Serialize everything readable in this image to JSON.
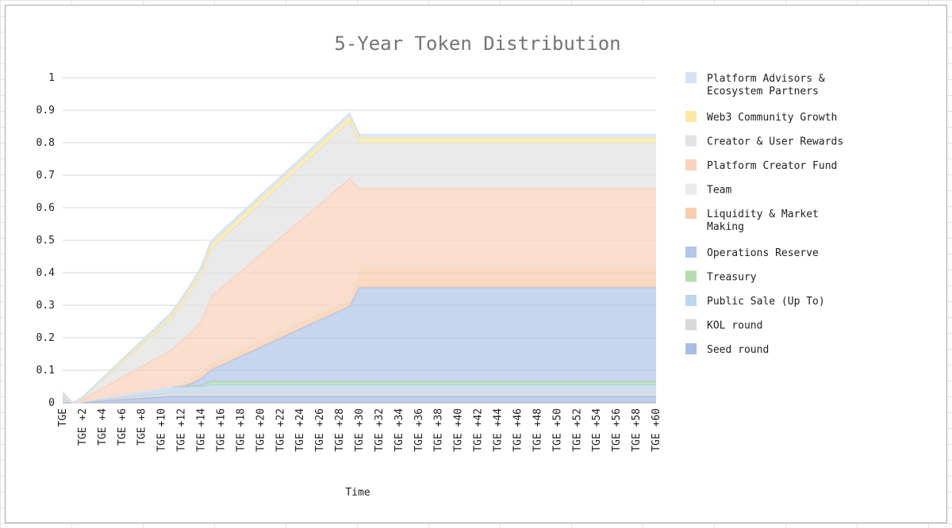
{
  "chart_data": {
    "type": "area",
    "stacked": true,
    "title": "5-Year Token Distribution",
    "xlabel": "Time",
    "ylabel": "",
    "ylim": [
      0,
      1
    ],
    "yticks": [
      "0",
      "0.1",
      "0.2",
      "0.3",
      "0.4",
      "0.5",
      "0.6",
      "0.7",
      "0.8",
      "0.9",
      "1"
    ],
    "xticks": [
      "TGE",
      "TGE +2",
      "TGE +4",
      "TGE +6",
      "TGE +8",
      "TGE +10",
      "TGE +12",
      "TGE +14",
      "TGE +16",
      "TGE +18",
      "TGE +20",
      "TGE +22",
      "TGE +24",
      "TGE +26",
      "TGE +28",
      "TGE +30",
      "TGE +32",
      "TGE +34",
      "TGE +36",
      "TGE +38",
      "TGE +40",
      "TGE +42",
      "TGE +44",
      "TGE +46",
      "TGE +48",
      "TGE +50",
      "TGE +52",
      "TGE +54",
      "TGE +56",
      "TGE +58",
      "TGE +60"
    ],
    "x": [
      0,
      1,
      2,
      3,
      4,
      5,
      6,
      7,
      8,
      9,
      10,
      11,
      12,
      13,
      14,
      15,
      16,
      17,
      18,
      19,
      20,
      21,
      22,
      23,
      24,
      25,
      26,
      27,
      28,
      29,
      30,
      31,
      32,
      33,
      34,
      35,
      36,
      37,
      38,
      39,
      40,
      41,
      42,
      43,
      44,
      45,
      46,
      47,
      48,
      49,
      50,
      51,
      52,
      53,
      54,
      55,
      56,
      57,
      58,
      59,
      60
    ],
    "grid": true,
    "legend_position": "right",
    "series": [
      {
        "name": "Seed round",
        "color": "#a9bde6",
        "values": [
          0,
          0,
          0.002,
          0.004,
          0.006,
          0.008,
          0.01,
          0.012,
          0.014,
          0.016,
          0.018,
          0.02,
          0.02,
          0.02,
          0.02,
          0.02,
          0.02,
          0.02,
          0.02,
          0.02,
          0.02,
          0.02,
          0.02,
          0.02,
          0.02,
          0.02,
          0.02,
          0.02,
          0.02,
          0.02,
          0.02,
          0.02,
          0.02,
          0.02,
          0.02,
          0.02,
          0.02,
          0.02,
          0.02,
          0.02,
          0.02,
          0.02,
          0.02,
          0.02,
          0.02,
          0.02,
          0.02,
          0.02,
          0.02,
          0.02,
          0.02,
          0.02,
          0.02,
          0.02,
          0.02,
          0.02,
          0.02,
          0.02,
          0.02,
          0.02,
          0.02
        ]
      },
      {
        "name": "KOL round",
        "color": "#d9d9d9",
        "values": [
          0.01,
          0,
          0.001,
          0.002,
          0.003,
          0.004,
          0.005,
          0.006,
          0.007,
          0.008,
          0.009,
          0.01,
          0.01,
          0.01,
          0.01,
          0.01,
          0.01,
          0.01,
          0.01,
          0.01,
          0.01,
          0.01,
          0.01,
          0.01,
          0.01,
          0.01,
          0.01,
          0.01,
          0.01,
          0.01,
          0.01,
          0.01,
          0.01,
          0.01,
          0.01,
          0.01,
          0.01,
          0.01,
          0.01,
          0.01,
          0.01,
          0.01,
          0.01,
          0.01,
          0.01,
          0.01,
          0.01,
          0.01,
          0.01,
          0.01,
          0.01,
          0.01,
          0.01,
          0.01,
          0.01,
          0.01,
          0.01,
          0.01,
          0.01,
          0.01,
          0.01
        ]
      },
      {
        "name": "Public Sale (Up To)",
        "color": "#bdd7ee",
        "values": [
          0.015,
          0,
          0.002,
          0.004,
          0.006,
          0.008,
          0.01,
          0.012,
          0.014,
          0.016,
          0.018,
          0.02,
          0.02,
          0.02,
          0.02,
          0.025,
          0.025,
          0.025,
          0.025,
          0.025,
          0.025,
          0.025,
          0.025,
          0.025,
          0.025,
          0.025,
          0.025,
          0.025,
          0.025,
          0.025,
          0.025,
          0.025,
          0.025,
          0.025,
          0.025,
          0.025,
          0.025,
          0.025,
          0.025,
          0.025,
          0.025,
          0.025,
          0.025,
          0.025,
          0.025,
          0.025,
          0.025,
          0.025,
          0.025,
          0.025,
          0.025,
          0.025,
          0.025,
          0.025,
          0.025,
          0.025,
          0.025,
          0.025,
          0.025,
          0.025,
          0.025
        ]
      },
      {
        "name": "Treasury",
        "color": "#b6dcae",
        "values": [
          0,
          0,
          0,
          0,
          0,
          0,
          0,
          0,
          0,
          0,
          0,
          0,
          0,
          0,
          0.003,
          0.01,
          0.01,
          0.01,
          0.01,
          0.01,
          0.01,
          0.01,
          0.01,
          0.01,
          0.01,
          0.01,
          0.01,
          0.01,
          0.01,
          0.01,
          0.01,
          0.01,
          0.01,
          0.01,
          0.01,
          0.01,
          0.01,
          0.01,
          0.01,
          0.01,
          0.01,
          0.01,
          0.01,
          0.01,
          0.01,
          0.01,
          0.01,
          0.01,
          0.01,
          0.01,
          0.01,
          0.01,
          0.01,
          0.01,
          0.01,
          0.01,
          0.01,
          0.01,
          0.01,
          0.01,
          0.01
        ]
      },
      {
        "name": "Operations Reserve",
        "color": "#b4c7e7",
        "values": [
          0,
          0,
          0,
          0,
          0,
          0,
          0,
          0,
          0,
          0,
          0,
          0,
          0,
          0.009,
          0.022,
          0.036,
          0.05,
          0.064,
          0.078,
          0.092,
          0.106,
          0.12,
          0.134,
          0.148,
          0.162,
          0.176,
          0.19,
          0.204,
          0.218,
          0.232,
          0.29,
          0.29,
          0.29,
          0.29,
          0.29,
          0.29,
          0.29,
          0.29,
          0.29,
          0.29,
          0.29,
          0.29,
          0.29,
          0.29,
          0.29,
          0.29,
          0.29,
          0.29,
          0.29,
          0.29,
          0.29,
          0.29,
          0.29,
          0.29,
          0.29,
          0.29,
          0.29,
          0.29,
          0.29,
          0.29,
          0.29
        ]
      },
      {
        "name": "Liquidity & Market Making",
        "color": "#f9cdb0",
        "values": [
          0,
          0,
          0,
          0,
          0,
          0,
          0,
          0,
          0,
          0,
          0,
          0,
          0.015,
          0.02,
          0.025,
          0.025,
          0.025,
          0.025,
          0.025,
          0.025,
          0.025,
          0.025,
          0.025,
          0.025,
          0.025,
          0.025,
          0.025,
          0.025,
          0.025,
          0.025,
          0.068,
          0.068,
          0.068,
          0.068,
          0.068,
          0.068,
          0.068,
          0.068,
          0.068,
          0.068,
          0.068,
          0.068,
          0.068,
          0.068,
          0.068,
          0.068,
          0.068,
          0.068,
          0.068,
          0.068,
          0.068,
          0.068,
          0.068,
          0.068,
          0.068,
          0.068,
          0.068,
          0.068,
          0.068,
          0.068,
          0.068
        ]
      },
      {
        "name": "Team",
        "color": "#ebebeb",
        "values": [
          0,
          0,
          0,
          0,
          0,
          0,
          0,
          0,
          0,
          0,
          0,
          0,
          0,
          0,
          0,
          0,
          0,
          0,
          0,
          0,
          0,
          0,
          0,
          0,
          0,
          0,
          0,
          0,
          0,
          0,
          0,
          0,
          0,
          0,
          0,
          0,
          0,
          0,
          0,
          0,
          0,
          0,
          0,
          0,
          0,
          0,
          0,
          0,
          0,
          0,
          0,
          0,
          0,
          0,
          0,
          0,
          0,
          0,
          0,
          0,
          0
        ]
      },
      {
        "name": "Platform Creator Fund",
        "color": "#fbd3bd",
        "values": [
          0,
          0,
          0.005,
          0.017,
          0.029,
          0.041,
          0.053,
          0.065,
          0.077,
          0.089,
          0.101,
          0.113,
          0.125,
          0.137,
          0.15,
          0.2,
          0.212,
          0.224,
          0.236,
          0.248,
          0.26,
          0.272,
          0.284,
          0.296,
          0.308,
          0.32,
          0.332,
          0.344,
          0.356,
          0.368,
          0.235,
          0.235,
          0.235,
          0.235,
          0.235,
          0.235,
          0.235,
          0.235,
          0.235,
          0.235,
          0.235,
          0.235,
          0.235,
          0.235,
          0.235,
          0.235,
          0.235,
          0.235,
          0.235,
          0.235,
          0.235,
          0.235,
          0.235,
          0.235,
          0.235,
          0.235,
          0.235,
          0.235,
          0.235,
          0.235,
          0.235
        ]
      },
      {
        "name": "Creator & User Rewards",
        "color": "#e3e3e3",
        "values": [
          0,
          0,
          0.005,
          0.015,
          0.025,
          0.035,
          0.045,
          0.055,
          0.065,
          0.075,
          0.085,
          0.095,
          0.11,
          0.128,
          0.145,
          0.147,
          0.149,
          0.151,
          0.153,
          0.155,
          0.157,
          0.159,
          0.161,
          0.163,
          0.165,
          0.167,
          0.169,
          0.171,
          0.173,
          0.175,
          0.142,
          0.142,
          0.142,
          0.142,
          0.142,
          0.142,
          0.142,
          0.142,
          0.142,
          0.142,
          0.142,
          0.142,
          0.142,
          0.142,
          0.142,
          0.142,
          0.142,
          0.142,
          0.142,
          0.142,
          0.142,
          0.142,
          0.142,
          0.142,
          0.142,
          0.142,
          0.142,
          0.142,
          0.142,
          0.142,
          0.142
        ]
      },
      {
        "name": "Web3 Community Growth",
        "color": "#fde8a3",
        "values": [
          0,
          0,
          0.001,
          0.002,
          0.003,
          0.004,
          0.005,
          0.006,
          0.007,
          0.008,
          0.009,
          0.01,
          0.011,
          0.012,
          0.013,
          0.014,
          0.015,
          0.015,
          0.015,
          0.015,
          0.015,
          0.015,
          0.015,
          0.015,
          0.015,
          0.015,
          0.015,
          0.015,
          0.015,
          0.015,
          0.015,
          0.015,
          0.015,
          0.015,
          0.015,
          0.015,
          0.015,
          0.015,
          0.015,
          0.015,
          0.015,
          0.015,
          0.015,
          0.015,
          0.015,
          0.015,
          0.015,
          0.015,
          0.015,
          0.015,
          0.015,
          0.015,
          0.015,
          0.015,
          0.015,
          0.015,
          0.015,
          0.015,
          0.015,
          0.015,
          0.015
        ]
      },
      {
        "name": "Platform Advisors & Ecosystem Partners",
        "color": "#d5e4f4",
        "values": [
          0.008,
          0,
          0.001,
          0.002,
          0.003,
          0.004,
          0.005,
          0.006,
          0.007,
          0.008,
          0.009,
          0.01,
          0.01,
          0.01,
          0.01,
          0.01,
          0.01,
          0.01,
          0.01,
          0.01,
          0.01,
          0.01,
          0.01,
          0.01,
          0.01,
          0.01,
          0.01,
          0.01,
          0.01,
          0.01,
          0.01,
          0.01,
          0.01,
          0.01,
          0.01,
          0.01,
          0.01,
          0.01,
          0.01,
          0.01,
          0.01,
          0.01,
          0.01,
          0.01,
          0.01,
          0.01,
          0.01,
          0.01,
          0.01,
          0.01,
          0.01,
          0.01,
          0.01,
          0.01,
          0.01,
          0.01,
          0.01,
          0.01,
          0.01,
          0.01,
          0.01
        ]
      }
    ]
  }
}
